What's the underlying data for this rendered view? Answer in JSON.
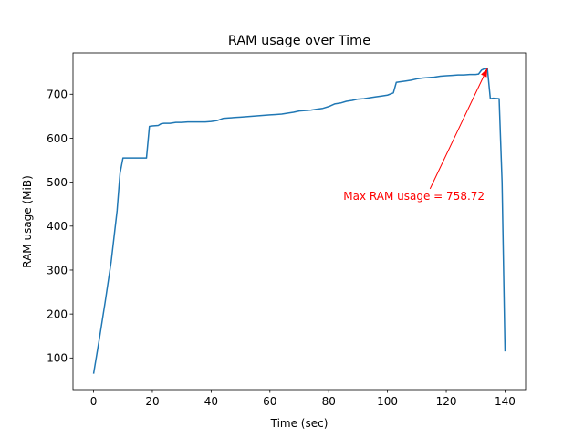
{
  "chart_data": {
    "type": "line",
    "title": "RAM usage over Time",
    "xlabel": "Time (sec)",
    "ylabel": "RAM usage (MiB)",
    "xlim": [
      -7,
      147
    ],
    "ylim": [
      28,
      794
    ],
    "xticks": [
      0,
      20,
      40,
      60,
      80,
      100,
      120,
      140
    ],
    "yticks": [
      100,
      200,
      300,
      400,
      500,
      600,
      700
    ],
    "grid": false,
    "line_color": "#1f77b4",
    "series": [
      {
        "x": [
          0,
          2,
          4,
          6,
          8,
          9,
          10,
          12,
          14,
          16,
          18,
          19,
          20,
          22,
          23,
          24,
          26,
          28,
          30,
          32,
          34,
          36,
          38,
          40,
          42,
          44,
          46,
          48,
          50,
          52,
          54,
          56,
          58,
          60,
          62,
          64,
          66,
          68,
          70,
          72,
          74,
          76,
          78,
          80,
          82,
          84,
          86,
          88,
          90,
          92,
          94,
          96,
          98,
          100,
          102,
          103,
          104,
          106,
          108,
          110,
          112,
          114,
          116,
          118,
          120,
          122,
          124,
          126,
          128,
          130,
          131,
          132,
          133,
          134,
          135,
          136,
          138,
          139,
          140
        ],
        "y": [
          64,
          145,
          230,
          320,
          435,
          520,
          555,
          555,
          555,
          555,
          555,
          627,
          628,
          629,
          633,
          634,
          634,
          636,
          636,
          637,
          637,
          637,
          637,
          638,
          640,
          645,
          646,
          647,
          648,
          649,
          650,
          651,
          652,
          653,
          654,
          655,
          657,
          659,
          662,
          663,
          664,
          666,
          668,
          672,
          678,
          680,
          684,
          686,
          689,
          690,
          692,
          694,
          696,
          698,
          703,
          727,
          728,
          730,
          732,
          735,
          737,
          738,
          739,
          741,
          742,
          743,
          744,
          744,
          745,
          745,
          746,
          755,
          758,
          758.72,
          690,
          691,
          690,
          500,
          115
        ]
      }
    ],
    "annotation": {
      "text": "Max RAM usage = 758.72",
      "color": "#ff0000",
      "text_x": 85,
      "text_y": 460,
      "arrow_x": 134,
      "arrow_y": 758.72
    }
  }
}
